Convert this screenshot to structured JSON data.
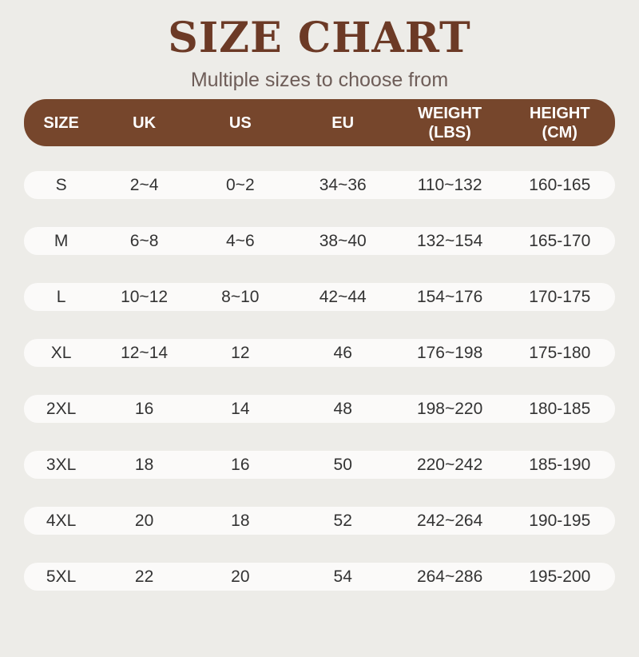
{
  "style": {
    "page_background": "#EDECE8",
    "title_color": "#6C3A26",
    "subtitle_color": "#6E5D58",
    "header_background": "#76462C",
    "header_text_color": "#FFFFFF",
    "row_background": "#FBFAF9",
    "row_text_color": "#333333"
  },
  "chart_data": {
    "type": "table",
    "title": "SIZE CHART",
    "subtitle": "Multiple sizes to choose from",
    "legend_position": "none",
    "grid": false,
    "columns": [
      "SIZE",
      "UK",
      "US",
      "EU",
      "WEIGHT\n(LBS)",
      "HEIGHT\n(CM)"
    ],
    "rows": [
      [
        "S",
        "2~4",
        "0~2",
        "34~36",
        "110~132",
        "160-165"
      ],
      [
        "M",
        "6~8",
        "4~6",
        "38~40",
        "132~154",
        "165-170"
      ],
      [
        "L",
        "10~12",
        "8~10",
        "42~44",
        "154~176",
        "170-175"
      ],
      [
        "XL",
        "12~14",
        "12",
        "46",
        "176~198",
        "175-180"
      ],
      [
        "2XL",
        "16",
        "14",
        "48",
        "198~220",
        "180-185"
      ],
      [
        "3XL",
        "18",
        "16",
        "50",
        "220~242",
        "185-190"
      ],
      [
        "4XL",
        "20",
        "18",
        "52",
        "242~264",
        "190-195"
      ],
      [
        "5XL",
        "22",
        "20",
        "54",
        "264~286",
        "195-200"
      ]
    ]
  }
}
